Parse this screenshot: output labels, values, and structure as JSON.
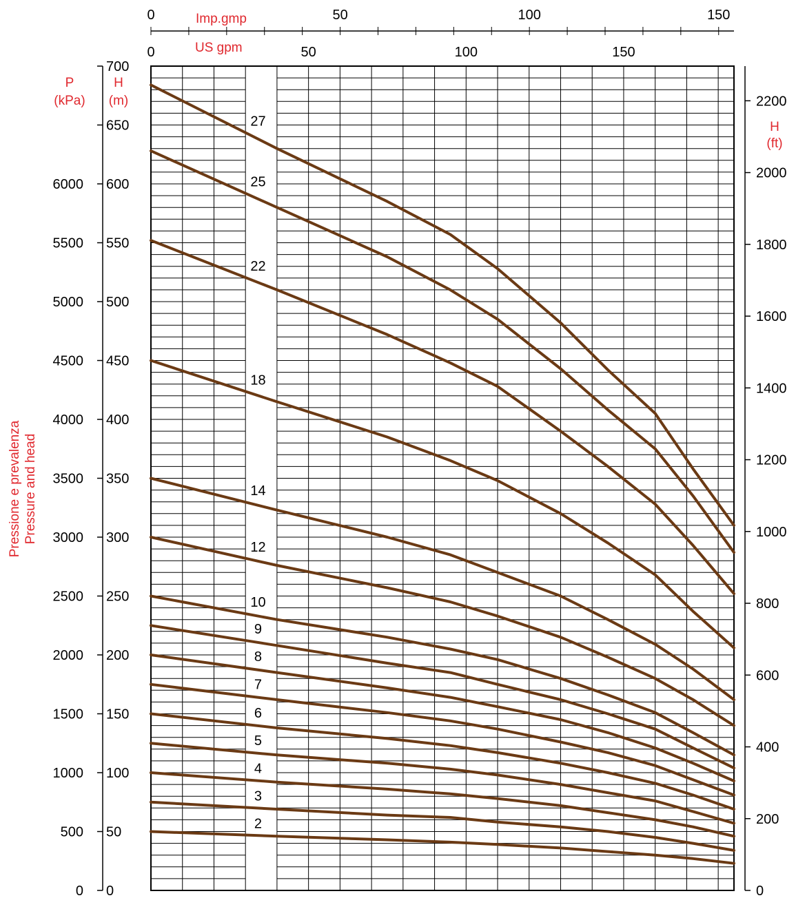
{
  "chart_data": {
    "type": "line",
    "x_units": {
      "top_label": "Imp.gmp",
      "top_ticks": [
        "0",
        "50",
        "100",
        "150"
      ],
      "us_label": "US gpm",
      "us_ticks": [
        "0",
        "50",
        "100",
        "150"
      ]
    },
    "y_left": {
      "p_label": "P",
      "p_unit": "(kPa)",
      "p_ticks": [
        "0",
        "500",
        "1000",
        "1500",
        "2000",
        "2500",
        "3000",
        "3500",
        "4000",
        "4500",
        "5000",
        "5500",
        "6000"
      ],
      "h_label": "H",
      "h_unit": "(m)",
      "h_ticks": [
        "0",
        "50",
        "100",
        "150",
        "200",
        "250",
        "300",
        "350",
        "400",
        "450",
        "500",
        "550",
        "600",
        "650",
        "700"
      ],
      "ylim": [
        0,
        700
      ]
    },
    "y_right": {
      "label": "H",
      "unit": "(ft)",
      "ticks": [
        "0",
        "200",
        "400",
        "600",
        "800",
        "1000",
        "1200",
        "1400",
        "1600",
        "1800",
        "2000",
        "2200"
      ]
    },
    "side_title_1": "Pressione e prevalenza",
    "side_title_2": "Pressure and head",
    "xlim": [
      0,
      185
    ],
    "x": [
      0,
      40,
      75,
      95,
      110,
      130,
      145,
      160,
      172,
      185
    ],
    "series": [
      {
        "name": "27",
        "values": [
          684,
          630,
          585,
          557,
          528,
          482,
          442,
          405,
          358,
          310
        ]
      },
      {
        "name": "25",
        "values": [
          628,
          580,
          538,
          510,
          485,
          443,
          408,
          375,
          335,
          287
        ]
      },
      {
        "name": "22",
        "values": [
          552,
          510,
          472,
          448,
          428,
          390,
          360,
          328,
          293,
          252
        ]
      },
      {
        "name": "18",
        "values": [
          450,
          415,
          385,
          365,
          348,
          320,
          295,
          268,
          237,
          206
        ]
      },
      {
        "name": "14",
        "values": [
          350,
          323,
          300,
          285,
          270,
          250,
          230,
          209,
          188,
          162
        ]
      },
      {
        "name": "12",
        "values": [
          300,
          276,
          257,
          245,
          233,
          215,
          198,
          180,
          162,
          140
        ]
      },
      {
        "name": "10",
        "values": [
          250,
          230,
          215,
          205,
          196,
          180,
          166,
          151,
          134,
          115
        ]
      },
      {
        "name": "9",
        "values": [
          225,
          208,
          193,
          185,
          175,
          162,
          150,
          137,
          121,
          104
        ]
      },
      {
        "name": "8",
        "values": [
          200,
          185,
          172,
          164,
          156,
          145,
          134,
          121,
          108,
          93
        ]
      },
      {
        "name": "7",
        "values": [
          175,
          162,
          151,
          144,
          137,
          126,
          117,
          106,
          94,
          81
        ]
      },
      {
        "name": "6",
        "values": [
          150,
          138,
          129,
          123,
          117,
          108,
          100,
          91,
          81,
          69
        ]
      },
      {
        "name": "5",
        "values": [
          125,
          115,
          108,
          103,
          98,
          90,
          83,
          76,
          67,
          57
        ]
      },
      {
        "name": "4",
        "values": [
          100,
          92,
          86,
          82,
          78,
          72,
          66,
          60,
          54,
          46
        ]
      },
      {
        "name": "3",
        "values": [
          75,
          69,
          64,
          62,
          58,
          54,
          50,
          45,
          40,
          34
        ]
      },
      {
        "name": "2",
        "values": [
          50,
          46,
          43,
          41,
          39,
          36,
          33,
          30,
          27,
          23
        ]
      }
    ],
    "label_x": 30,
    "line_color": "#6b3a14",
    "label_color": "#e0282e",
    "grid": true
  }
}
